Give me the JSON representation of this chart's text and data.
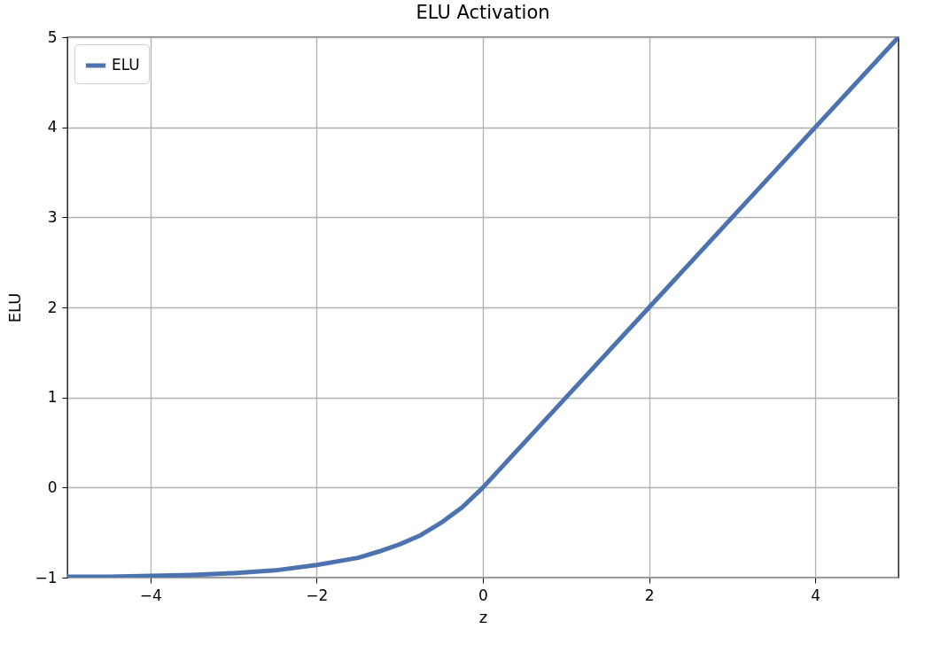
{
  "chart_data": {
    "type": "line",
    "title": "ELU Activation",
    "xlabel": "z",
    "ylabel": "ELU",
    "x": [
      -5,
      -4.5,
      -4,
      -3.5,
      -3,
      -2.5,
      -2,
      -1.5,
      -1.25,
      -1,
      -0.75,
      -0.5,
      -0.25,
      0,
      1,
      2,
      3,
      4,
      5
    ],
    "series": [
      {
        "name": "ELU",
        "color": "#4c72b0",
        "values": [
          -0.99,
          -0.99,
          -0.98,
          -0.97,
          -0.95,
          -0.92,
          -0.86,
          -0.78,
          -0.71,
          -0.63,
          -0.53,
          -0.39,
          -0.22,
          0,
          1,
          2,
          3,
          4,
          5
        ]
      }
    ],
    "xlim": [
      -5,
      5
    ],
    "xticks": [
      {
        "value": -4,
        "label": "−4"
      },
      {
        "value": -2,
        "label": "−2"
      },
      0,
      2,
      4
    ],
    "ylim": [
      -1,
      5
    ],
    "yticks": [
      {
        "value": -1,
        "label": "−1"
      },
      0,
      1,
      2,
      3,
      4,
      5
    ],
    "grid": true,
    "legend": "top left",
    "marker": "none",
    "line_style": "solid"
  }
}
